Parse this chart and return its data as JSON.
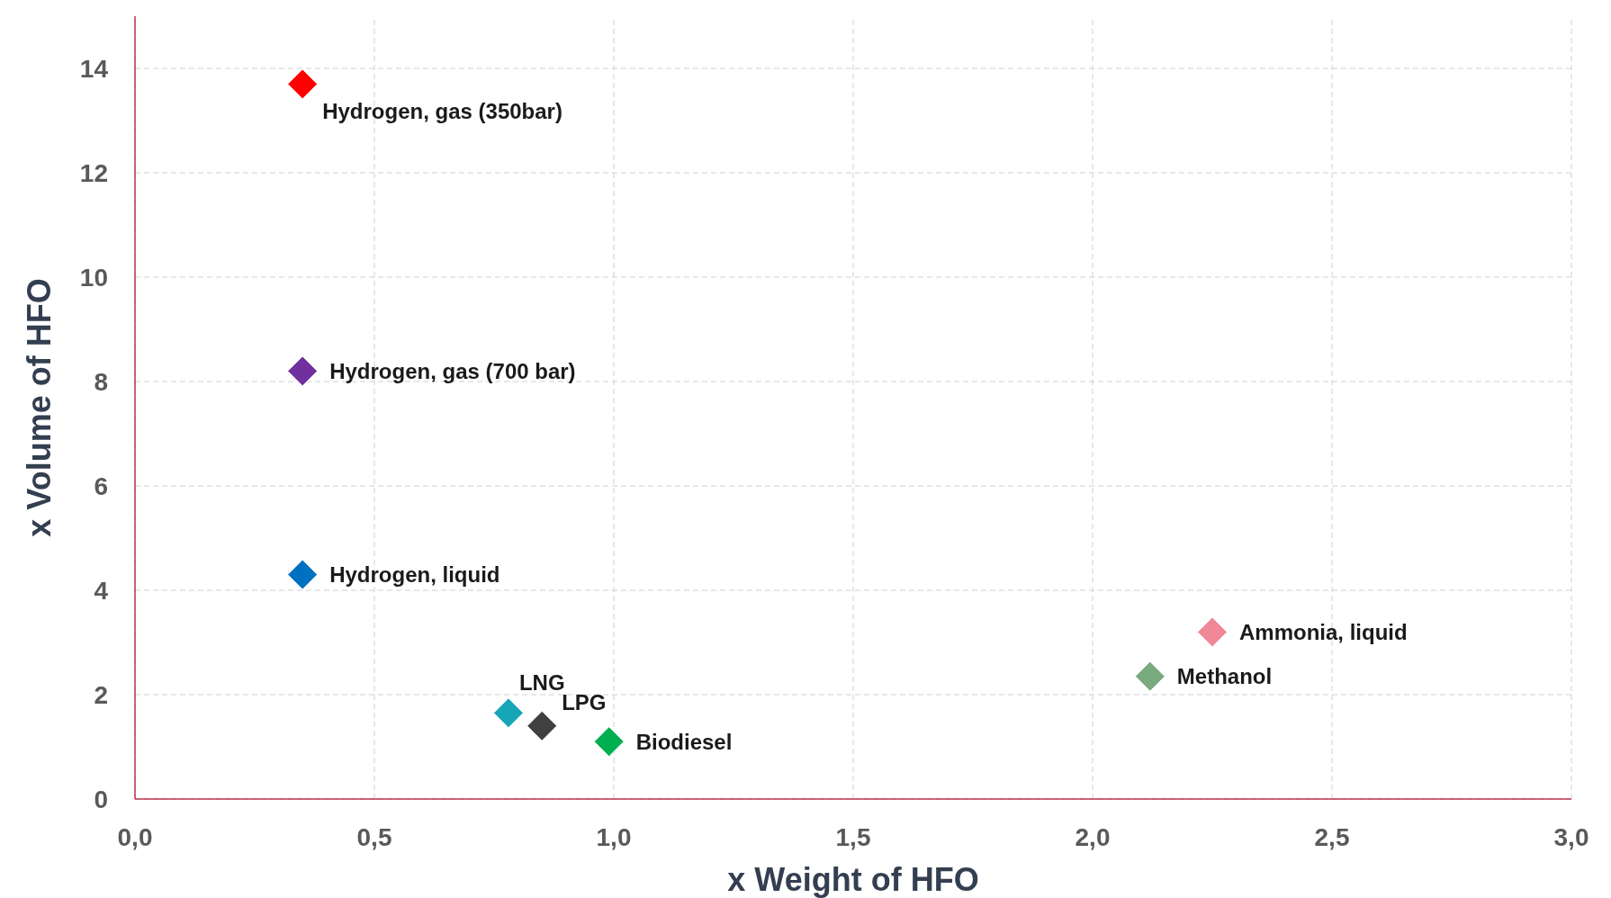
{
  "chart_data": {
    "type": "scatter",
    "xlabel": "x Weight of HFO",
    "ylabel": "x Volume of HFO",
    "xlim": [
      0,
      3
    ],
    "xticks": [
      {
        "value": 0,
        "label": "0,0"
      },
      {
        "value": 0.5,
        "label": "0,5"
      },
      {
        "value": 1,
        "label": "1,0"
      },
      {
        "value": 1.5,
        "label": "1,5"
      },
      {
        "value": 2,
        "label": "2,0"
      },
      {
        "value": 2.5,
        "label": "2,5"
      },
      {
        "value": 3,
        "label": "3,0"
      }
    ],
    "ylim": [
      0,
      15
    ],
    "yticks": [
      0,
      2,
      4,
      6,
      8,
      10,
      12,
      14
    ],
    "grid": true,
    "marker": "diamond",
    "series": [
      {
        "name": "Hydrogen, gas (350bar)",
        "color": "#ff0000",
        "x": [
          0.35
        ],
        "values": [
          13.7
        ]
      },
      {
        "name": "Hydrogen, gas (700 bar)",
        "color": "#7030a0",
        "x": [
          0.35
        ],
        "values": [
          8.2
        ]
      },
      {
        "name": "Hydrogen, liquid",
        "color": "#0070c0",
        "x": [
          0.35
        ],
        "values": [
          4.3
        ]
      },
      {
        "name": "LNG",
        "color": "#17a6b8",
        "x": [
          0.78
        ],
        "values": [
          1.65
        ]
      },
      {
        "name": "LPG",
        "color": "#404040",
        "x": [
          0.85
        ],
        "values": [
          1.4
        ]
      },
      {
        "name": "Biodiesel",
        "color": "#00b050",
        "x": [
          0.99
        ],
        "values": [
          1.1
        ]
      },
      {
        "name": "Methanol",
        "color": "#7aaa80",
        "x": [
          2.12
        ],
        "values": [
          2.35
        ]
      },
      {
        "name": "Ammonia, liquid",
        "color": "#f08898",
        "x": [
          2.25
        ],
        "values": [
          3.2
        ]
      }
    ]
  }
}
